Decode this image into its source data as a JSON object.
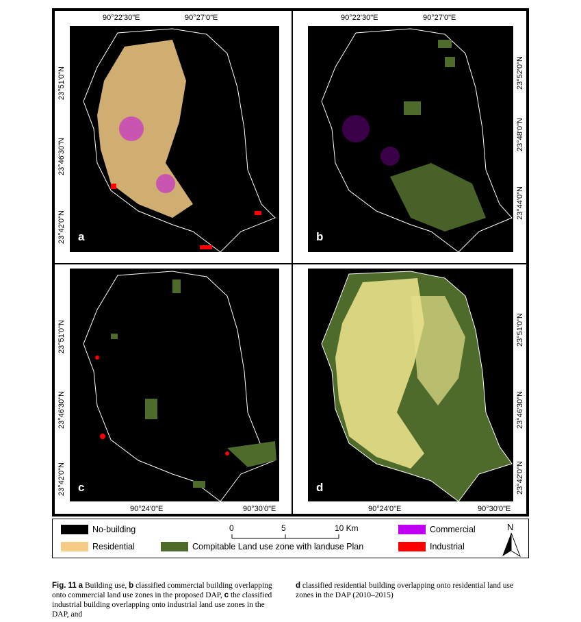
{
  "panels": {
    "a": {
      "letter": "a",
      "top_labels": [
        "90°22'30\"E",
        "90°27'0\"E"
      ],
      "left_labels": [
        "23°51'0\"N",
        "23°46'30\"N",
        "23°42'0\"N"
      ]
    },
    "b": {
      "letter": "b",
      "top_labels": [
        "90°22'30\"E",
        "90°27'0\"E"
      ],
      "right_labels": [
        "23°52'0\"N",
        "23°48'0\"N",
        "23°44'0\"N"
      ]
    },
    "c": {
      "letter": "c",
      "bottom_labels": [
        "90°24'0\"E",
        "90°30'0\"E"
      ],
      "left_labels": [
        "23°51'0\"N",
        "23°46'30\"N",
        "23°42'0\"N"
      ]
    },
    "d": {
      "letter": "d",
      "bottom_labels": [
        "90°24'0\"E",
        "90°30'0\"E"
      ],
      "right_labels": [
        "23°51'0\"N",
        "23°46'30\"N",
        "23°42'0\"N"
      ]
    }
  },
  "legend": {
    "no_building": "No-building",
    "residential": "Residential",
    "compatible": "Compitable Land use zone with landuse Plan",
    "commercial": "Commercial",
    "industrial": "Industrial",
    "scale": {
      "ticks": [
        "0",
        "5",
        "10 Km"
      ]
    },
    "north": "N"
  },
  "colors": {
    "no_building": "#000000",
    "residential": "#f5cb85",
    "compatible": "#4f6b2c",
    "commercial": "#c000f0",
    "industrial": "#ff0000",
    "boundary": "#ffffff",
    "residential_light": "#e7e08a"
  },
  "caption": {
    "fig_label": "Fig. 11",
    "part1": "a",
    "text1": "Building use,",
    "part2": "b",
    "text2": "classified commercial building overlapping onto commercial land use zones in the proposed DAP,",
    "part3": "c",
    "text3": "the classified industrial building overlapping onto industrial land use zones in the DAP, and",
    "part4": "d",
    "text4": "classified residential building overlapping onto residential land use zones in the DAP (2010–2015)"
  }
}
